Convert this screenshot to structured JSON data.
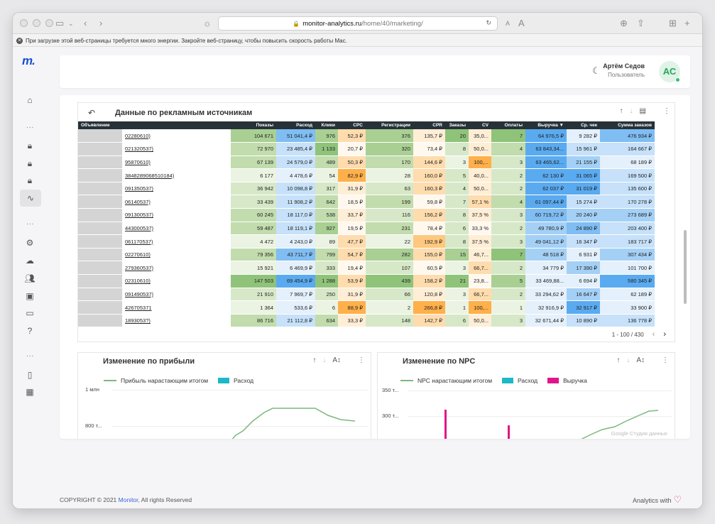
{
  "browser": {
    "url_domain": "monitor-analytics.ru",
    "url_path": "/home/40/marketing/",
    "warning": "При загрузке этой веб-страницы требуется много энергии. Закройте веб-страницу, чтобы повысить скорость работы Mac."
  },
  "sidebar": {
    "logo": "m.",
    "dots": "..."
  },
  "user": {
    "name": "Артём Седов",
    "role": "Пользователь",
    "initials": "АС"
  },
  "table": {
    "title": "Данные по рекламным источникам",
    "columns": [
      "Объявление",
      "Показы",
      "Расход",
      "Клики",
      "CPC",
      "Регистрации",
      "CPR",
      "Заказы",
      "CV",
      "Оплаты",
      "Выручка ▼",
      "Ср. чек",
      "Сумма заказов"
    ],
    "rows": [
      [
        "02280610)",
        "104 671",
        "51 041,4 ₽",
        "976",
        "52,3 ₽",
        "376",
        "135,7 ₽",
        "20",
        "35,0...",
        "7",
        "64 976,5 ₽",
        "9 282 ₽",
        "476 934 ₽"
      ],
      [
        "021320537)",
        "72 970",
        "23 485,4 ₽",
        "1 133",
        "20,7 ₽",
        "320",
        "73,4 ₽",
        "8",
        "50,0...",
        "4",
        "63 843,34...",
        "15 961 ₽",
        "164 667 ₽"
      ],
      [
        "95870610)",
        "67 139",
        "24 579,0 ₽",
        "489",
        "50,3 ₽",
        "170",
        "144,6 ₽",
        "3",
        "100,...",
        "3",
        "63 465,62...",
        "21 155 ₽",
        "68 189 ₽"
      ],
      [
        "3848289068510184)",
        "6 177",
        "4 478,6 ₽",
        "54",
        "82,9 ₽",
        "28",
        "160,0 ₽",
        "5",
        "40,0...",
        "2",
        "62 130 ₽",
        "31 065 ₽",
        "169 500 ₽"
      ],
      [
        "091350537)",
        "36 942",
        "10 098,8 ₽",
        "317",
        "31,9 ₽",
        "63",
        "160,3 ₽",
        "4",
        "50,0...",
        "2",
        "62 037 ₽",
        "31 019 ₽",
        "135 600 ₽"
      ],
      [
        "06140537)",
        "33 439",
        "11 908,2 ₽",
        "642",
        "18,5 ₽",
        "199",
        "59,8 ₽",
        "7",
        "57,1 %",
        "4",
        "61 097,44 ₽",
        "15 274 ₽",
        "170 278 ₽"
      ],
      [
        "091300537)",
        "60 245",
        "18 117,0 ₽",
        "538",
        "33,7 ₽",
        "116",
        "156,2 ₽",
        "8",
        "37,5 %",
        "3",
        "60 719,72 ₽",
        "20 240 ₽",
        "273 689 ₽"
      ],
      [
        "443000537)",
        "59 487",
        "18 119,1 ₽",
        "927",
        "19,5 ₽",
        "231",
        "78,4 ₽",
        "6",
        "33,3 %",
        "2",
        "49 780,9 ₽",
        "24 890 ₽",
        "203 400 ₽"
      ],
      [
        "061170537)",
        "4 472",
        "4 243,0 ₽",
        "89",
        "47,7 ₽",
        "22",
        "192,9 ₽",
        "8",
        "37,5 %",
        "3",
        "49 041,12 ₽",
        "16 347 ₽",
        "183 717 ₽"
      ],
      [
        "02270610)",
        "79 356",
        "43 711,7 ₽",
        "799",
        "54,7 ₽",
        "282",
        "155,0 ₽",
        "15",
        "46,7...",
        "7",
        "48 518 ₽",
        "6 931 ₽",
        "307 434 ₽"
      ],
      [
        "279360537)",
        "15 921",
        "6 469,9 ₽",
        "333",
        "19,4 ₽",
        "107",
        "60,5 ₽",
        "3",
        "66,7...",
        "2",
        "34 779 ₽",
        "17 390 ₽",
        "101 700 ₽"
      ],
      [
        "02310610)",
        "147 503",
        "69 454,9 ₽",
        "1 288",
        "53,9 ₽",
        "439",
        "158,2 ₽",
        "21",
        "23,8...",
        "5",
        "33 469,88...",
        "6 694 ₽",
        "580 345 ₽"
      ],
      [
        "091490537)",
        "21 910",
        "7 969,7 ₽",
        "250",
        "31,9 ₽",
        "66",
        "120,8 ₽",
        "3",
        "66,7...",
        "2",
        "33 294,62 ₽",
        "16 647 ₽",
        "62 189 ₽"
      ],
      [
        "426705371",
        "1 364",
        "533,6 ₽",
        "6",
        "88,9 ₽",
        "2",
        "266,8 ₽",
        "1",
        "100,...",
        "1",
        "32 916,9 ₽",
        "32 917 ₽",
        "33 900 ₽"
      ],
      [
        "1893053?)",
        "86 716",
        "21 112,8 ₽",
        "634",
        "33,3 ₽",
        "148",
        "142,7 ₽",
        "6",
        "50,0...",
        "3",
        "32 671,44 ₽",
        "10 890 ₽",
        "136 778 ₽"
      ]
    ],
    "pager": "1 - 100 / 430"
  },
  "chart_profit": {
    "title": "Изменение по прибыли",
    "legend": [
      "Прибыль нарастающим итогом",
      "Расход"
    ],
    "yticks": [
      "1 млн",
      "800 т..."
    ]
  },
  "chart_npc": {
    "title": "Изменение по NPC",
    "legend": [
      "NPC нарастающим итогом",
      "Расход",
      "Выручка"
    ],
    "yticks": [
      "350 т...",
      "300 т..."
    ],
    "watermark": "Google Студия данных"
  },
  "footer": {
    "copyright_pre": "COPYRIGHT © 2021 ",
    "brand": "Monitor",
    "copyright_post": ", All rights Reserved",
    "analytics": "Analytics with"
  },
  "colors": {
    "header_dark": "#263238",
    "green": "#7cb87c",
    "cyan": "#1cb8c8",
    "magenta": "#e0148c",
    "accent": "#1a4fd0"
  }
}
